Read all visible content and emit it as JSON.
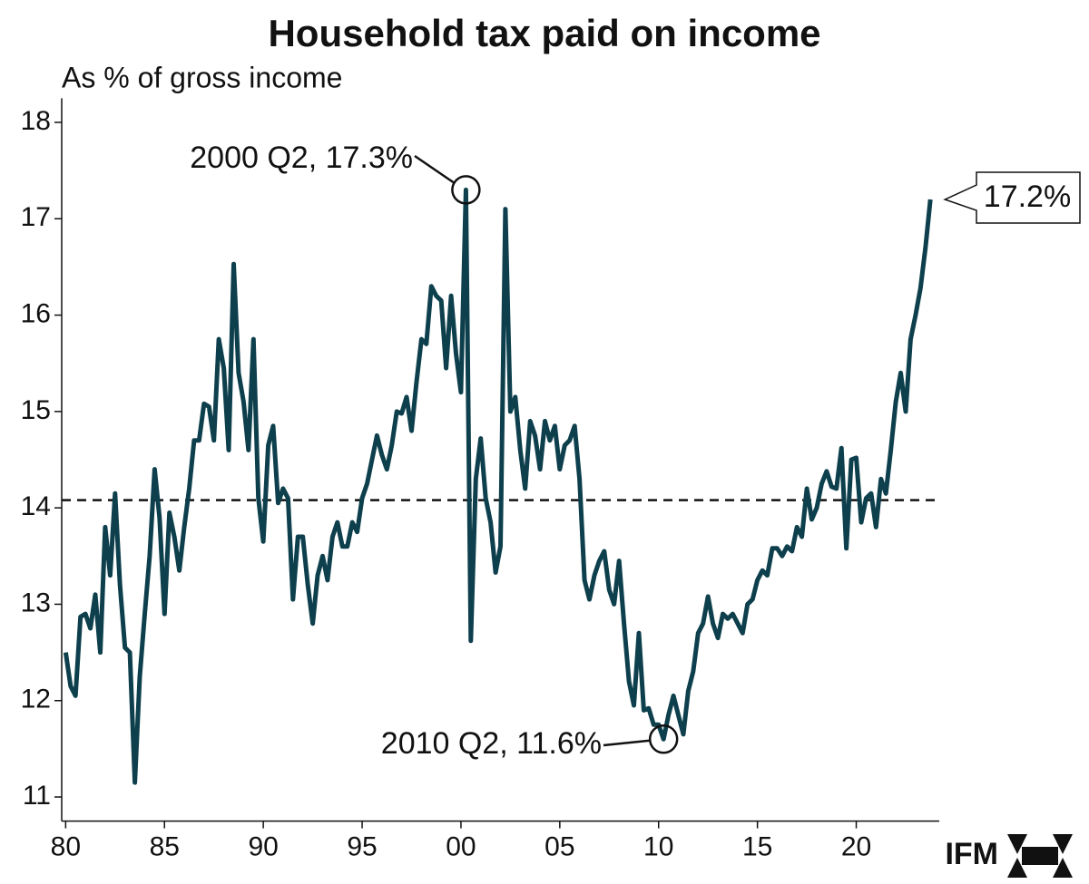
{
  "chart_data": {
    "type": "line",
    "title": "Household tax paid on income",
    "y_label": "As % of gross income",
    "logo": "IFM",
    "x": [
      1980,
      1980.25,
      1980.5,
      1980.75,
      1981,
      1981.25,
      1981.5,
      1981.75,
      1982,
      1982.25,
      1982.5,
      1982.75,
      1983,
      1983.25,
      1983.5,
      1983.75,
      1984,
      1984.25,
      1984.5,
      1984.75,
      1985,
      1985.25,
      1985.5,
      1985.75,
      1986,
      1986.25,
      1986.5,
      1986.75,
      1987,
      1987.25,
      1987.5,
      1987.75,
      1988,
      1988.25,
      1988.5,
      1988.75,
      1989,
      1989.25,
      1989.5,
      1989.75,
      1990,
      1990.25,
      1990.5,
      1990.75,
      1991,
      1991.25,
      1991.5,
      1991.75,
      1992,
      1992.25,
      1992.5,
      1992.75,
      1993,
      1993.25,
      1993.5,
      1993.75,
      1994,
      1994.25,
      1994.5,
      1994.75,
      1995,
      1995.25,
      1995.5,
      1995.75,
      1996,
      1996.25,
      1996.5,
      1996.75,
      1997,
      1997.25,
      1997.5,
      1997.75,
      1998,
      1998.25,
      1998.5,
      1998.75,
      1999,
      1999.25,
      1999.5,
      1999.75,
      2000,
      2000.25,
      2000.5,
      2000.75,
      2001,
      2001.25,
      2001.5,
      2001.75,
      2002,
      2002.25,
      2002.5,
      2002.75,
      2003,
      2003.25,
      2003.5,
      2003.75,
      2004,
      2004.25,
      2004.5,
      2004.75,
      2005,
      2005.25,
      2005.5,
      2005.75,
      2006,
      2006.25,
      2006.5,
      2006.75,
      2007,
      2007.25,
      2007.5,
      2007.75,
      2008,
      2008.25,
      2008.5,
      2008.75,
      2009,
      2009.25,
      2009.5,
      2009.75,
      2010,
      2010.25,
      2010.5,
      2010.75,
      2011,
      2011.25,
      2011.5,
      2011.75,
      2012,
      2012.25,
      2012.5,
      2012.75,
      2013,
      2013.25,
      2013.5,
      2013.75,
      2014,
      2014.25,
      2014.5,
      2014.75,
      2015,
      2015.25,
      2015.5,
      2015.75,
      2016,
      2016.25,
      2016.5,
      2016.75,
      2017,
      2017.25,
      2017.5,
      2017.75,
      2018,
      2018.25,
      2018.5,
      2018.75,
      2019,
      2019.25,
      2019.5,
      2019.75,
      2020,
      2020.25,
      2020.5,
      2020.75,
      2021,
      2021.25,
      2021.5,
      2021.75,
      2022,
      2022.25,
      2022.5,
      2022.75,
      2023,
      2023.25,
      2023.5,
      2023.75
    ],
    "series": [
      {
        "name": "Household tax paid on income",
        "color": "#0d3f4c",
        "values": [
          12.5,
          12.15,
          12.05,
          12.87,
          12.9,
          12.75,
          13.1,
          12.5,
          13.8,
          13.3,
          14.15,
          13.2,
          12.55,
          12.5,
          11.15,
          12.25,
          12.9,
          13.5,
          14.4,
          13.9,
          12.9,
          13.95,
          13.7,
          13.35,
          13.8,
          14.2,
          14.7,
          14.7,
          15.08,
          15.05,
          14.7,
          15.75,
          15.45,
          14.6,
          16.53,
          15.4,
          15.1,
          14.6,
          15.75,
          14.1,
          13.65,
          14.65,
          14.85,
          14.05,
          14.2,
          14.1,
          13.05,
          13.7,
          13.7,
          13.2,
          12.8,
          13.3,
          13.5,
          13.25,
          13.7,
          13.85,
          13.6,
          13.6,
          13.85,
          13.75,
          14.1,
          14.25,
          14.5,
          14.75,
          14.55,
          14.4,
          14.65,
          15.0,
          14.98,
          15.15,
          14.8,
          15.3,
          15.75,
          15.7,
          16.3,
          16.2,
          16.15,
          15.45,
          16.2,
          15.6,
          15.2,
          17.3,
          12.62,
          14.3,
          14.72,
          14.1,
          13.85,
          13.33,
          13.6,
          17.1,
          15.0,
          15.15,
          14.6,
          14.2,
          14.9,
          14.75,
          14.4,
          14.9,
          14.7,
          14.85,
          14.4,
          14.65,
          14.7,
          14.85,
          14.3,
          13.25,
          13.05,
          13.3,
          13.45,
          13.55,
          13.15,
          13.0,
          13.45,
          12.8,
          12.2,
          11.95,
          12.7,
          11.9,
          11.92,
          11.75,
          11.75,
          11.6,
          11.85,
          12.05,
          11.85,
          11.65,
          12.1,
          12.3,
          12.7,
          12.8,
          13.08,
          12.8,
          12.65,
          12.9,
          12.85,
          12.9,
          12.8,
          12.7,
          13.0,
          13.05,
          13.25,
          13.35,
          13.3,
          13.58,
          13.58,
          13.5,
          13.6,
          13.55,
          13.8,
          13.7,
          14.2,
          13.88,
          14.0,
          14.25,
          14.38,
          14.22,
          14.2,
          14.62,
          13.58,
          14.5,
          14.52,
          13.85,
          14.1,
          14.15,
          13.8,
          14.3,
          14.15,
          14.6,
          15.1,
          15.4,
          15.0,
          15.75,
          16.0,
          16.28,
          16.7,
          17.2
        ]
      }
    ],
    "reference_line": {
      "value": 14.08,
      "style": "dashed"
    },
    "annotations": [
      {
        "text": "2000 Q2, 17.3%",
        "x": 2000.25,
        "y": 17.3
      },
      {
        "text": "2010 Q2, 11.6%",
        "x": 2010.25,
        "y": 11.6
      },
      {
        "text": "17.2%",
        "x": 2023.75,
        "y": 17.2
      }
    ],
    "xlim": [
      1979.8,
      2024.2
    ],
    "xticks": [
      {
        "value": 1980,
        "label": "80"
      },
      {
        "value": 1985,
        "label": "85"
      },
      {
        "value": 1990,
        "label": "90"
      },
      {
        "value": 1995,
        "label": "95"
      },
      {
        "value": 2000,
        "label": "00"
      },
      {
        "value": 2005,
        "label": "05"
      },
      {
        "value": 2010,
        "label": "10"
      },
      {
        "value": 2015,
        "label": "15"
      },
      {
        "value": 2020,
        "label": "20"
      }
    ],
    "ylim": [
      10.75,
      18.25
    ],
    "yticks": [
      11,
      12,
      13,
      14,
      15,
      16,
      17,
      18
    ],
    "grid": false
  }
}
